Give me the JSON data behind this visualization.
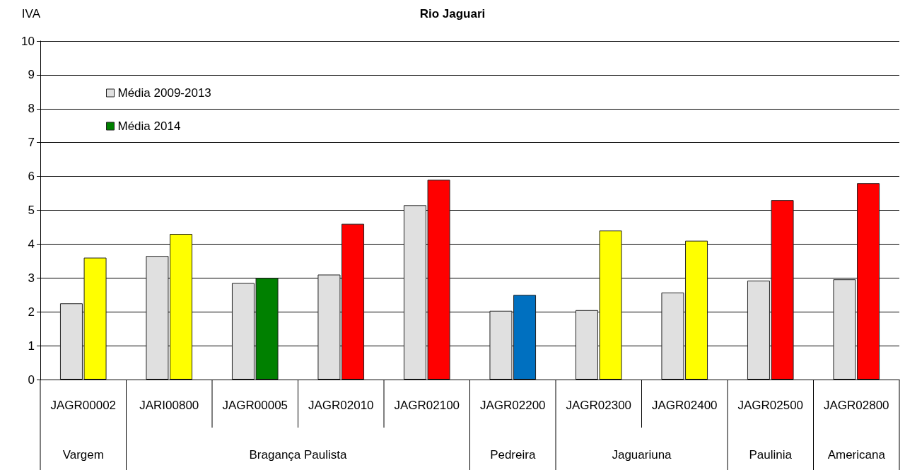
{
  "chart_data": {
    "type": "bar",
    "title": "Rio Jaguari",
    "ylabel": "IVA",
    "categories": [
      "JAGR00002",
      "JARI00800",
      "JAGR00005",
      "JAGR02010",
      "JAGR02100",
      "JAGR02200",
      "JAGR02300",
      "JAGR02400",
      "JAGR02500",
      "JAGR02800"
    ],
    "series": [
      {
        "name": "Média 2009-2013",
        "color": "#e0e0e0",
        "values": [
          2.25,
          3.65,
          2.85,
          3.1,
          5.15,
          2.03,
          2.05,
          2.57,
          2.92,
          2.96
        ]
      },
      {
        "name": "Média 2014",
        "color": "#008000",
        "colors": [
          "#ffff00",
          "#ffff00",
          "#008000",
          "#ff0000",
          "#ff0000",
          "#0070c0",
          "#ffff00",
          "#ffff00",
          "#ff0000",
          "#ff0000"
        ],
        "values": [
          3.6,
          4.3,
          3.0,
          4.6,
          5.9,
          2.5,
          4.4,
          4.1,
          5.3,
          5.8
        ]
      }
    ],
    "ylim": [
      0,
      10
    ],
    "yticks": [
      0,
      1,
      2,
      3,
      4,
      5,
      6,
      7,
      8,
      9,
      10
    ],
    "grid": "y",
    "legend": "top left",
    "annotations": [
      "Vargem",
      "Bragança Paulista",
      "Pedreira",
      "Jaguariuna",
      "Paulinia",
      "Americana"
    ]
  }
}
